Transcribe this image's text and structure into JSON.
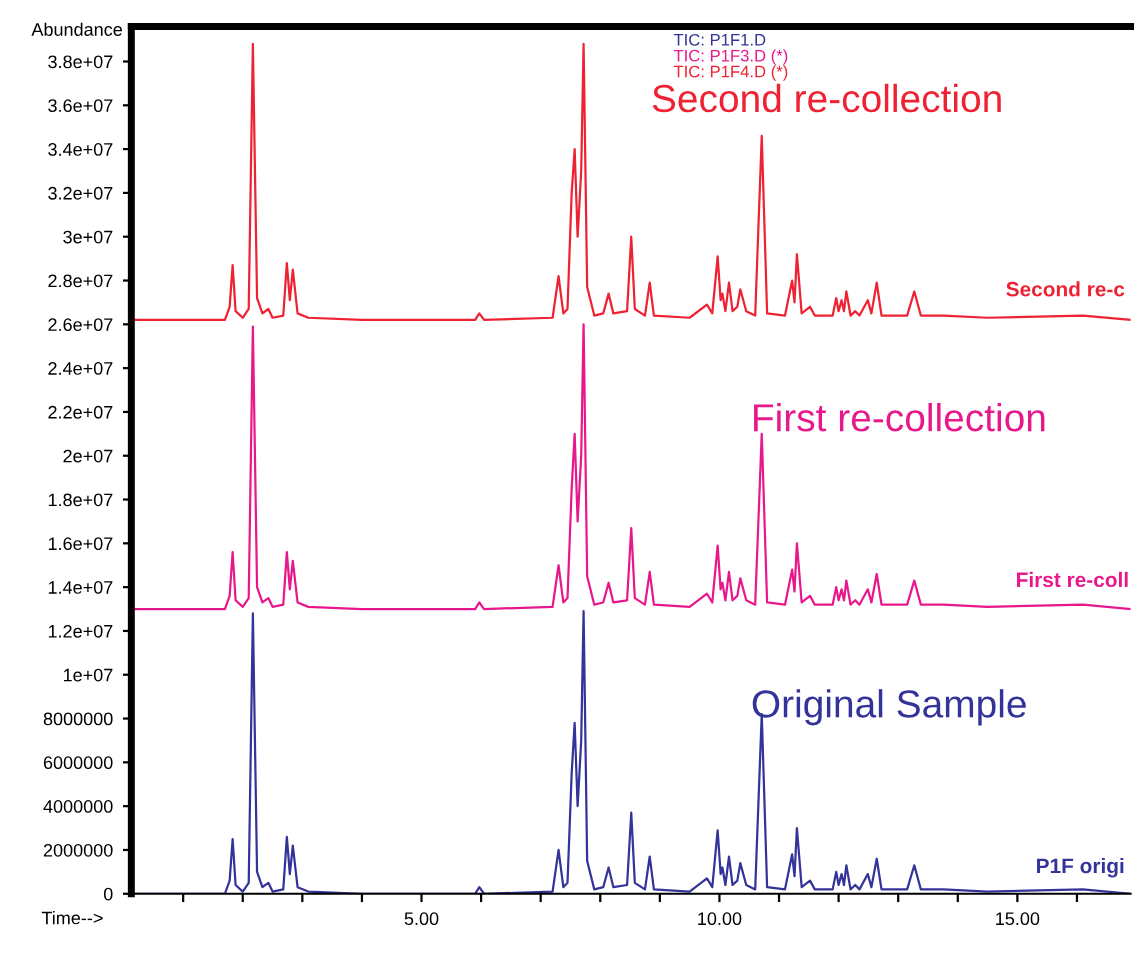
{
  "chart_data": {
    "type": "line",
    "xlabel": "Time-->",
    "ylabel": "Abundance",
    "x": [
      0.13,
      1.7,
      1.78,
      1.83,
      1.88,
      2.0,
      2.1,
      2.17,
      2.24,
      2.33,
      2.43,
      2.5,
      2.68,
      2.74,
      2.79,
      2.84,
      2.92,
      3.1,
      4.0,
      5.9,
      5.97,
      6.05,
      7.2,
      7.3,
      7.38,
      7.45,
      7.52,
      7.57,
      7.62,
      7.68,
      7.72,
      7.78,
      7.9,
      8.05,
      8.14,
      8.22,
      8.45,
      8.52,
      8.58,
      8.75,
      8.83,
      8.9,
      9.5,
      9.79,
      9.88,
      9.97,
      10.02,
      10.05,
      10.1,
      10.16,
      10.22,
      10.3,
      10.35,
      10.45,
      10.6,
      10.71,
      10.8,
      11.1,
      11.22,
      11.26,
      11.3,
      11.38,
      11.52,
      11.6,
      11.9,
      11.96,
      12.0,
      12.05,
      12.09,
      12.13,
      12.2,
      12.28,
      12.35,
      12.49,
      12.55,
      12.64,
      12.72,
      12.99,
      13.15,
      13.27,
      13.38,
      13.76,
      14.5,
      16.1,
      16.9
    ],
    "series": [
      {
        "name": "TIC: P1F1.D",
        "color": "#333399",
        "values": [
          0,
          0,
          600000.0,
          2500000.0,
          400000.0,
          100000.0,
          500000.0,
          12800000.0,
          1000000.0,
          300000.0,
          500000.0,
          100000.0,
          200000.0,
          2600000.0,
          900000.0,
          2200000.0,
          300000.0,
          100000.0,
          0,
          0,
          300000.0,
          0,
          100000.0,
          2000000.0,
          300000.0,
          500000.0,
          5500000.0,
          7800000.0,
          4000000.0,
          7000000.0,
          12900000.0,
          1500000.0,
          200000.0,
          300000.0,
          1200000.0,
          300000.0,
          400000.0,
          3700000.0,
          500000.0,
          200000.0,
          1700000.0,
          200000.0,
          100000.0,
          700000.0,
          300000.0,
          2900000.0,
          900000.0,
          1200000.0,
          400000.0,
          1700000.0,
          400000.0,
          600000.0,
          1400000.0,
          400000.0,
          200000.0,
          8200000.0,
          300000.0,
          200000.0,
          1800000.0,
          800000.0,
          3000000.0,
          300000.0,
          600000.0,
          200000.0,
          200000.0,
          1000000.0,
          400000.0,
          900000.0,
          400000.0,
          1300000.0,
          200000.0,
          400000.0,
          200000.0,
          900000.0,
          300000.0,
          1600000.0,
          200000.0,
          200000.0,
          200000.0,
          1300000.0,
          200000.0,
          200000.0,
          100000.0,
          200000.0,
          0
        ]
      },
      {
        "name": "TIC: P1F3.D (*)",
        "color": "#e8188c",
        "values": [
          13000000.0,
          13000000.0,
          13600000.0,
          15600000.0,
          13400000.0,
          13100000.0,
          13500000.0,
          25900000.0,
          14000000.0,
          13300000.0,
          13500000.0,
          13100000.0,
          13200000.0,
          15600000.0,
          13900000.0,
          15200000.0,
          13300000.0,
          13100000.0,
          13000000.0,
          13000000.0,
          13300000.0,
          13000000.0,
          13100000.0,
          15000000.0,
          13300000.0,
          13500000.0,
          18500000.0,
          21000000.0,
          17000000.0,
          20000000.0,
          26000000.0,
          14500000.0,
          13200000.0,
          13300000.0,
          14200000.0,
          13300000.0,
          13400000.0,
          16700000.0,
          13500000.0,
          13200000.0,
          14700000.0,
          13200000.0,
          13100000.0,
          13700000.0,
          13300000.0,
          15900000.0,
          13900000.0,
          14200000.0,
          13400000.0,
          14700000.0,
          13400000.0,
          13600000.0,
          14400000.0,
          13400000.0,
          13200000.0,
          21000000.0,
          13300000.0,
          13200000.0,
          14800000.0,
          13800000.0,
          16000000.0,
          13300000.0,
          13600000.0,
          13200000.0,
          13200000.0,
          14000000.0,
          13400000.0,
          13900000.0,
          13400000.0,
          14300000.0,
          13200000.0,
          13400000.0,
          13200000.0,
          13900000.0,
          13300000.0,
          14600000.0,
          13200000.0,
          13200000.0,
          13200000.0,
          14300000.0,
          13200000.0,
          13200000.0,
          13100000.0,
          13200000.0,
          13000000.0
        ]
      },
      {
        "name": "TIC: P1F4.D (*)",
        "color": "#ee2233",
        "values": [
          26200000.0,
          26200000.0,
          26800000.0,
          28700000.0,
          26600000.0,
          26300000.0,
          26700000.0,
          38800000.0,
          27200000.0,
          26500000.0,
          26700000.0,
          26300000.0,
          26400000.0,
          28800000.0,
          27100000.0,
          28500000.0,
          26500000.0,
          26300000.0,
          26200000.0,
          26200000.0,
          26500000.0,
          26200000.0,
          26300000.0,
          28200000.0,
          26500000.0,
          26700000.0,
          32000000.0,
          34000000.0,
          30000000.0,
          33000000.0,
          38800000.0,
          27700000.0,
          26400000.0,
          26500000.0,
          27400000.0,
          26500000.0,
          26600000.0,
          30000000.0,
          26700000.0,
          26400000.0,
          27900000.0,
          26400000.0,
          26300000.0,
          26900000.0,
          26500000.0,
          29100000.0,
          27100000.0,
          27400000.0,
          26600000.0,
          27900000.0,
          26600000.0,
          26800000.0,
          27600000.0,
          26600000.0,
          26400000.0,
          34600000.0,
          26500000.0,
          26400000.0,
          28000000.0,
          27000000.0,
          29200000.0,
          26500000.0,
          26800000.0,
          26400000.0,
          26400000.0,
          27200000.0,
          26600000.0,
          27100000.0,
          26600000.0,
          27500000.0,
          26400000.0,
          26600000.0,
          26400000.0,
          27100000.0,
          26500000.0,
          27900000.0,
          26400000.0,
          26400000.0,
          26400000.0,
          27500000.0,
          26400000.0,
          26400000.0,
          26300000.0,
          26400000.0,
          26200000.0
        ]
      }
    ],
    "xlim": [
      0.13,
      16.9
    ],
    "ylim": [
      0,
      39600000.0
    ],
    "xticks": [
      {
        "value": 1,
        "label": null
      },
      {
        "value": 2,
        "label": null
      },
      {
        "value": 3,
        "label": null
      },
      {
        "value": 4,
        "label": null
      },
      {
        "value": 5,
        "label": "5.00"
      },
      {
        "value": 6,
        "label": null
      },
      {
        "value": 7,
        "label": null
      },
      {
        "value": 8,
        "label": null
      },
      {
        "value": 9,
        "label": null
      },
      {
        "value": 10,
        "label": "10.00"
      },
      {
        "value": 11,
        "label": null
      },
      {
        "value": 12,
        "label": null
      },
      {
        "value": 13,
        "label": null
      },
      {
        "value": 14,
        "label": null
      },
      {
        "value": 15,
        "label": "15.00"
      },
      {
        "value": 16,
        "label": null
      }
    ],
    "yticks": [
      0,
      2000000,
      4000000,
      6000000,
      8000000,
      {
        "value": 10000000.0,
        "label": "1e+07"
      },
      {
        "value": 12000000.0,
        "label": "1.2e+07"
      },
      {
        "value": 14000000.0,
        "label": "1.4e+07"
      },
      {
        "value": 16000000.0,
        "label": "1.6e+07"
      },
      {
        "value": 18000000.0,
        "label": "1.8e+07"
      },
      {
        "value": 20000000.0,
        "label": "2e+07"
      },
      {
        "value": 22000000.0,
        "label": "2.2e+07"
      },
      {
        "value": 24000000.0,
        "label": "2.4e+07"
      },
      {
        "value": 26000000.0,
        "label": "2.6e+07"
      },
      {
        "value": 28000000.0,
        "label": "2.8e+07"
      },
      {
        "value": 30000000.0,
        "label": "3e+07"
      },
      {
        "value": 32000000.0,
        "label": "3.2e+07"
      },
      {
        "value": 34000000.0,
        "label": "3.4e+07"
      },
      {
        "value": 36000000.0,
        "label": "3.6e+07"
      },
      {
        "value": 38000000.0,
        "label": "3.8e+07"
      }
    ],
    "annotations": [
      "Second re-collection",
      "First re-collection",
      "Original Sample",
      "Second re-c",
      "First re-coll",
      "P1F origi"
    ],
    "legend": "top",
    "grid": false,
    "marker": "none",
    "line_style": "solid"
  }
}
